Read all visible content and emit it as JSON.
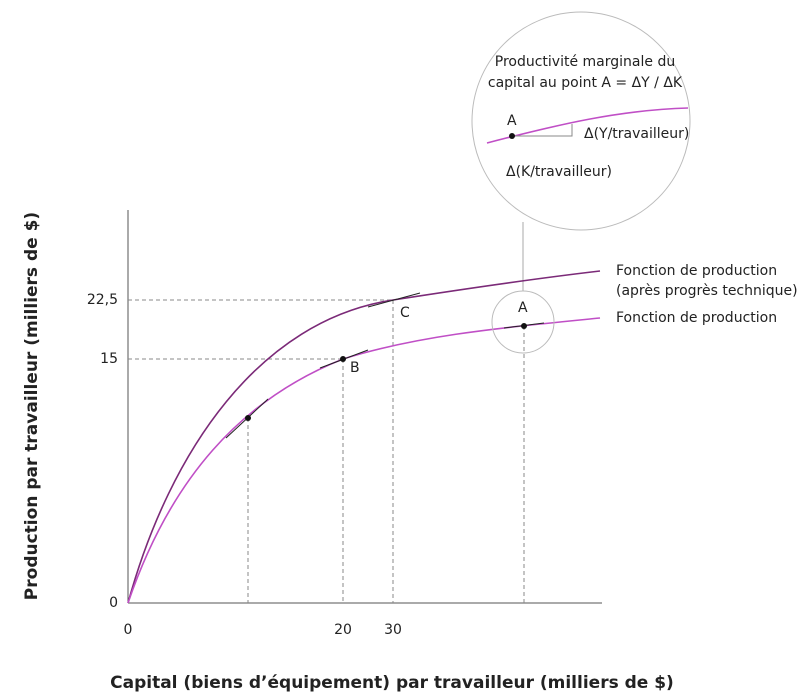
{
  "axes": {
    "y_label": "Production par travailleur (milliers de $)",
    "x_label": "Capital (biens d’équipement) par travailleur (milliers de $)",
    "y_ticks": [
      "22,5",
      "15",
      "0"
    ],
    "x_ticks": [
      "0",
      "20",
      "30"
    ]
  },
  "curves": [
    {
      "label_lines": [
        "Fonction de production",
        "(après progrès technique)"
      ]
    },
    {
      "label_lines": [
        "Fonction de production"
      ]
    }
  ],
  "points": {
    "A": "A",
    "B": "B",
    "C": "C"
  },
  "inset": {
    "title_lines": [
      "Productivité marginale du",
      "capital au point A = ΔY / ΔK"
    ],
    "point": "A",
    "dy_label": "Δ(Y/travailleur)",
    "dx_label": "Δ(K/travailleur)"
  }
}
